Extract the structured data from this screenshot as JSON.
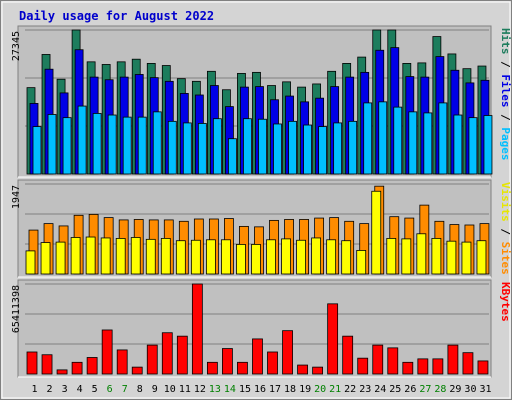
{
  "chart_data": {
    "type": "bar",
    "title": "Daily usage for August 2022",
    "colors": {
      "hits": "#1d7d5d",
      "files": "#0000e6",
      "pages": "#00bfff",
      "visits": "#ff8c00",
      "sites": "#ffff00",
      "kbytes": "#ff0000",
      "weekend_label": "#008000",
      "title": "#0000cc",
      "panel_bg": "#c0c0c0",
      "frame_bg": "#d4d4d4"
    },
    "days": [
      "1",
      "2",
      "3",
      "4",
      "5",
      "6",
      "7",
      "8",
      "9",
      "10",
      "11",
      "12",
      "13",
      "14",
      "15",
      "16",
      "17",
      "18",
      "19",
      "20",
      "21",
      "22",
      "23",
      "24",
      "25",
      "26",
      "27",
      "28",
      "29",
      "30",
      "31"
    ],
    "weekend_days": [
      "6",
      "7",
      "13",
      "14",
      "20",
      "21",
      "27",
      "28"
    ],
    "panels": [
      {
        "id": "usage",
        "max_label": "27345",
        "ymax": 27345,
        "side_labels": [
          "Pages",
          "Files",
          "Hits"
        ],
        "series": [
          {
            "name": "Hits",
            "values": [
              16400,
              22700,
              18000,
              27345,
              21300,
              20800,
              21300,
              21800,
              21000,
              20600,
              18100,
              17600,
              19500,
              16000,
              19100,
              19300,
              16800,
              17500,
              16500,
              17100,
              19500,
              21000,
              22200,
              27345,
              27345,
              21000,
              21100,
              26100,
              22800,
              20000,
              20500
            ]
          },
          {
            "name": "Files",
            "values": [
              13400,
              19900,
              15400,
              23600,
              18400,
              17900,
              18400,
              18900,
              18300,
              17600,
              15300,
              15000,
              16800,
              12800,
              16500,
              16600,
              14100,
              14800,
              13700,
              14400,
              16600,
              18400,
              19300,
              23500,
              24000,
              18500,
              18400,
              22300,
              19700,
              17300,
              17800
            ]
          },
          {
            "name": "Pages",
            "values": [
              9000,
              11300,
              10700,
              12900,
              11500,
              11200,
              10800,
              10800,
              11800,
              10000,
              9700,
              9600,
              10500,
              6700,
              10500,
              10400,
              9500,
              10000,
              9300,
              9000,
              9700,
              10000,
              13500,
              13700,
              12700,
              11800,
              11600,
              13500,
              11200,
              10700,
              11100
            ]
          }
        ]
      },
      {
        "id": "visits",
        "max_label": "1947",
        "ymax": 1947,
        "side_labels": [
          "Sites",
          "Visits"
        ],
        "series": [
          {
            "name": "Visits",
            "values": [
              950,
              1090,
              1040,
              1270,
              1290,
              1220,
              1170,
              1180,
              1170,
              1170,
              1140,
              1190,
              1190,
              1200,
              1030,
              1020,
              1160,
              1180,
              1180,
              1210,
              1220,
              1140,
              1090,
              1900,
              1240,
              1210,
              1490,
              1140,
              1070,
              1060,
              1090
            ]
          },
          {
            "name": "Sites",
            "values": [
              500,
              680,
              690,
              790,
              800,
              780,
              770,
              790,
              750,
              770,
              720,
              730,
              740,
              740,
              640,
              640,
              740,
              760,
              730,
              780,
              740,
              720,
              510,
              1790,
              770,
              760,
              870,
              770,
              710,
              690,
              720
            ]
          }
        ]
      },
      {
        "id": "kbytes",
        "max_label": "65411398",
        "ymax": 65411398,
        "side_labels": [
          "KBytes"
        ],
        "series": [
          {
            "name": "KBytes",
            "values": [
              16000000,
              14000000,
              3000000,
              8500000,
              12000000,
              32000000,
              17500000,
              5000000,
              21000000,
              30000000,
              27500000,
              65411398,
              8500000,
              18500000,
              8500000,
              25500000,
              16000000,
              31500000,
              6500000,
              5000000,
              51000000,
              27500000,
              11500000,
              21000000,
              19000000,
              8500000,
              11000000,
              11000000,
              21000000,
              15500000,
              9500000
            ]
          }
        ]
      }
    ]
  }
}
